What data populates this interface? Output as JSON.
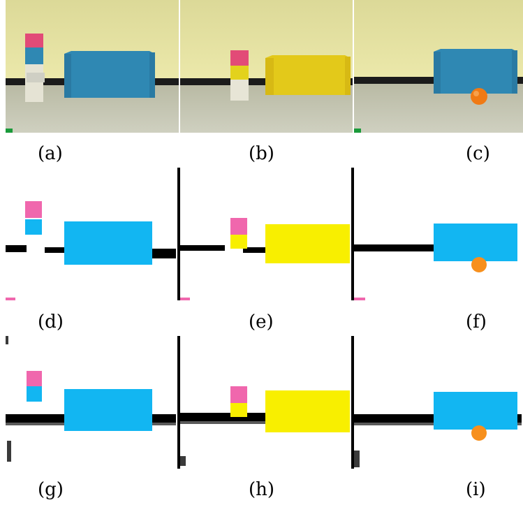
{
  "figure": {
    "captions": [
      "(a)",
      "(b)",
      "(c)",
      "(d)",
      "(e)",
      "(f)",
      "(g)",
      "(h)",
      "(i)"
    ]
  },
  "colors": {
    "wall": "#e9e6a4",
    "floor": "#c7c8b4",
    "baseboard": "#1b1b1b",
    "goal_blue": "#2f88b3",
    "goal_yellow": "#e3c91a",
    "marker_pink": "#e24b77",
    "ball_orange": "#f07a14",
    "seg_cyan": "#12b6f2",
    "seg_yellow": "#f8ef00",
    "seg_pink": "#f067ad",
    "seg_orange": "#f7901d",
    "seg_black": "#000000"
  }
}
